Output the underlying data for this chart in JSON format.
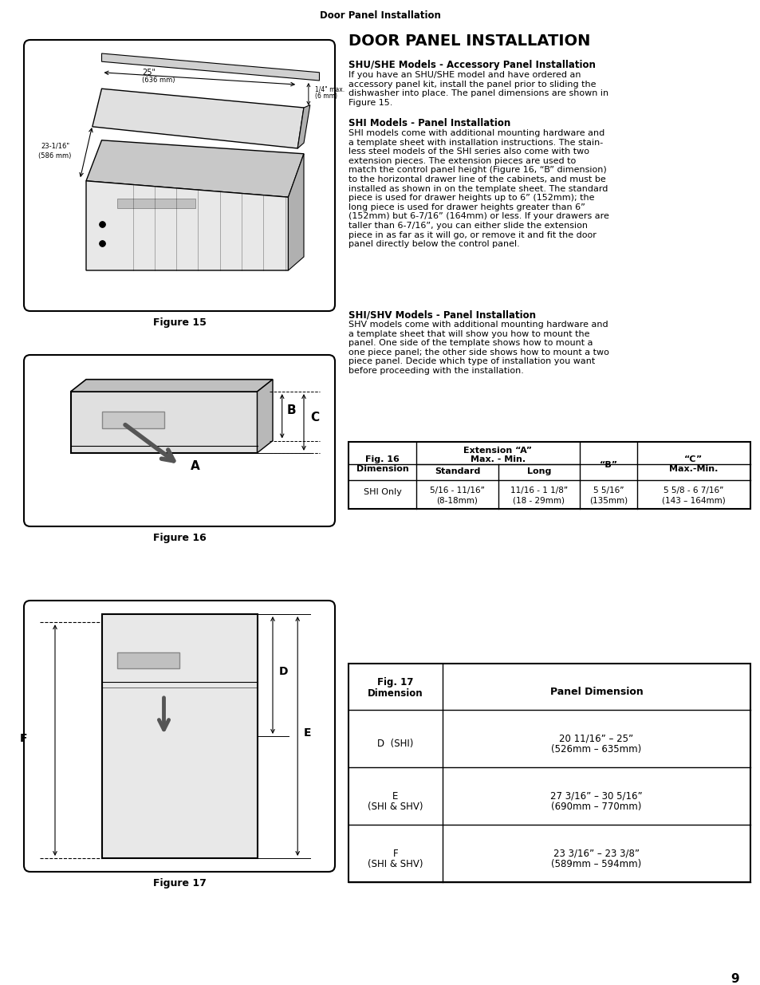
{
  "page_header": "Door Panel Installation",
  "main_title": "DOOR PANEL INSTALLATION",
  "s1_title": "SHU/SHE Models - Accessory Panel Installation",
  "s1_body": "If you have an SHU/SHE model and have ordered an\naccessory panel kit, install the panel prior to sliding the\ndishwasher into place. The panel dimensions are shown in\nFigure 15.",
  "s2_title": "SHI Models - Panel Installation",
  "s2_body": "SHI models come with additional mounting hardware and\na template sheet with installation instructions. The stain-\nless steel models of the SHI series also come with two\nextension pieces. The extension pieces are used to\nmatch the control panel height (Figure 16, “B” dimension)\nto the horizontal drawer line of the cabinets, and must be\ninstalled as shown in on the template sheet. The standard\npiece is used for drawer heights up to 6” (152mm); the\nlong piece is used for drawer heights greater than 6”\n(152mm) but 6-7/16” (164mm) or less. If your drawers are\ntaller than 6-7/16”, you can either slide the extension\npiece in as far as it will go, or remove it and fit the door\npanel directly below the control panel.",
  "s3_title": "SHI/SHV Models - Panel Installation",
  "s3_body": "SHV models come with additional mounting hardware and\na template sheet that will show you how to mount the\npanel. One side of the template shows how to mount a\none piece panel; the other side shows how to mount a two\npiece panel. Decide which type of installation you want\nbefore proceeding with the installation.",
  "fig15_caption": "Figure 15",
  "fig16_caption": "Figure 16",
  "fig17_caption": "Figure 17",
  "page_number": "9",
  "bg_color": "#ffffff"
}
